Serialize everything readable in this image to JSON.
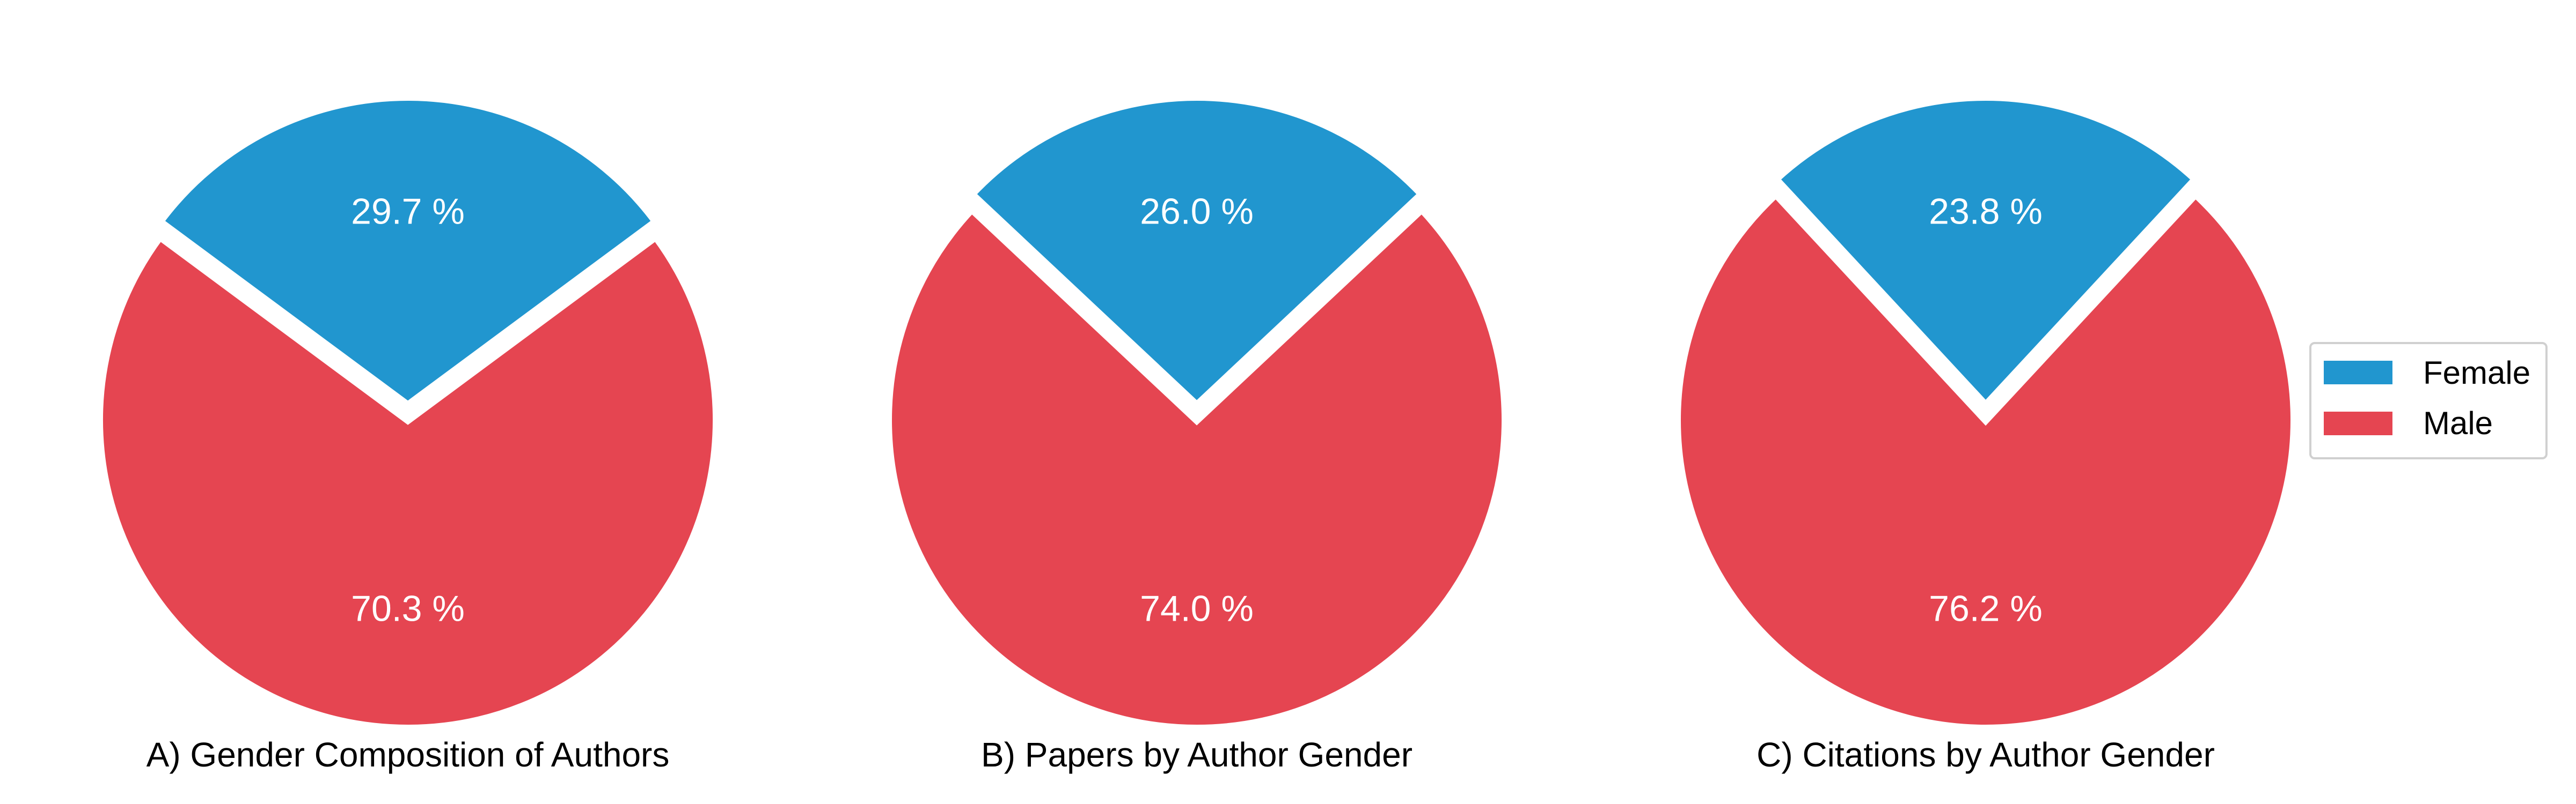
{
  "chart_data": [
    {
      "type": "pie",
      "title": "A) Gender Composition of Authors",
      "categories": [
        "Female",
        "Male"
      ],
      "values": [
        29.7,
        70.3
      ],
      "labels": [
        "29.7 %",
        "70.3 %"
      ]
    },
    {
      "type": "pie",
      "title": "B) Papers by Author Gender",
      "categories": [
        "Female",
        "Male"
      ],
      "values": [
        26.0,
        74.0
      ],
      "labels": [
        "26.0 %",
        "74.0 %"
      ]
    },
    {
      "type": "pie",
      "title": "C) Citations by Author Gender",
      "categories": [
        "Female",
        "Male"
      ],
      "values": [
        23.8,
        76.2
      ],
      "labels": [
        "23.8 %",
        "76.2 %"
      ]
    }
  ],
  "legend": {
    "placement": "right",
    "items": [
      {
        "label": "Female",
        "color": "#2196cf"
      },
      {
        "label": "Male",
        "color": "#e54551"
      }
    ]
  },
  "colors": {
    "Female": "#2196cf",
    "Male": "#e54551",
    "edge": "#ffffff"
  }
}
